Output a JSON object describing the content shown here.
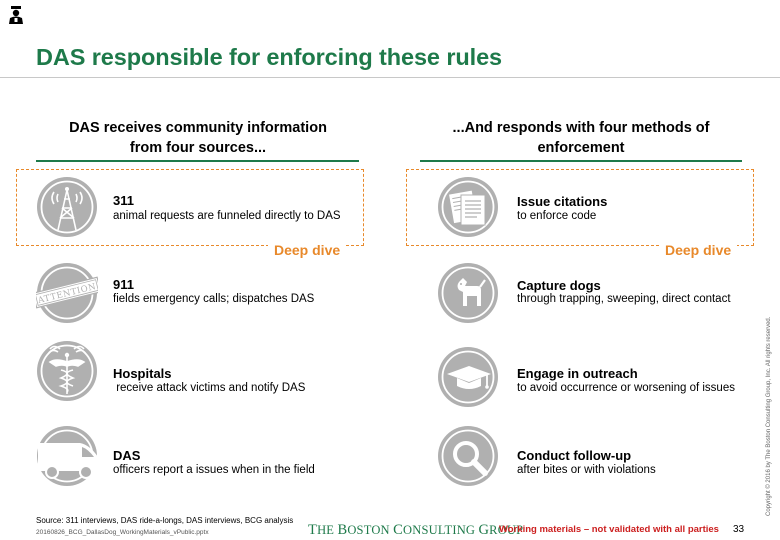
{
  "title": "DAS responsible for enforcing these rules",
  "left_column": {
    "heading_line1": "DAS receives community information",
    "heading_line2": "from four sources...",
    "deep_dive": "Deep dive",
    "items": [
      {
        "title": "311",
        "desc": "animal requests are funneled directly to DAS",
        "icon": "radio-tower-icon"
      },
      {
        "title": "911",
        "desc": "fields emergency calls; dispatches DAS",
        "icon": "attention-stamp-icon",
        "icon_text": "ATTENTION"
      },
      {
        "title": "Hospitals",
        "desc": " receive attack victims and notify DAS",
        "icon": "medical-caduceus-icon"
      },
      {
        "title": "DAS",
        "desc": "officers report a issues when in the field",
        "icon": "van-icon"
      }
    ]
  },
  "right_column": {
    "heading_line1": "...And responds with four methods of",
    "heading_line2": "enforcement",
    "deep_dive": "Deep dive",
    "items": [
      {
        "title": "Issue citations",
        "desc": "to enforce code",
        "icon": "documents-icon"
      },
      {
        "title": "Capture dogs",
        "desc": "through trapping, sweeping, direct contact",
        "icon": "dog-icon"
      },
      {
        "title": "Engage in outreach",
        "desc": "to avoid occurrence or worsening of issues",
        "icon": "graduation-cap-icon"
      },
      {
        "title": "Conduct follow-up",
        "desc": "after bites or with violations",
        "icon": "magnifier-icon"
      }
    ]
  },
  "footer": {
    "source": "Source: 311 interviews, DAS ride-a-longs, DAS interviews, BCG analysis",
    "file": "20160826_BCG_DallasDog_WorkingMaterials_vPublic.pptx",
    "brand_t": "T",
    "brand_he": "HE ",
    "brand_b": "B",
    "brand_oston": "OSTON ",
    "brand_c": "C",
    "brand_onsulting": "ONSULTING ",
    "brand_g": "G",
    "brand_roup": "ROUP",
    "warning": "Working materials – not validated with all parties",
    "page_number": "33",
    "copyright": "Copyright © 2016 by The Boston Consulting Group, Inc. All rights reserved."
  },
  "colors": {
    "accent_green": "#1e7a4a",
    "deep_dive_orange": "#e8892b",
    "warning_red": "#cc1f1f",
    "icon_gray": "#a6a6a6"
  }
}
